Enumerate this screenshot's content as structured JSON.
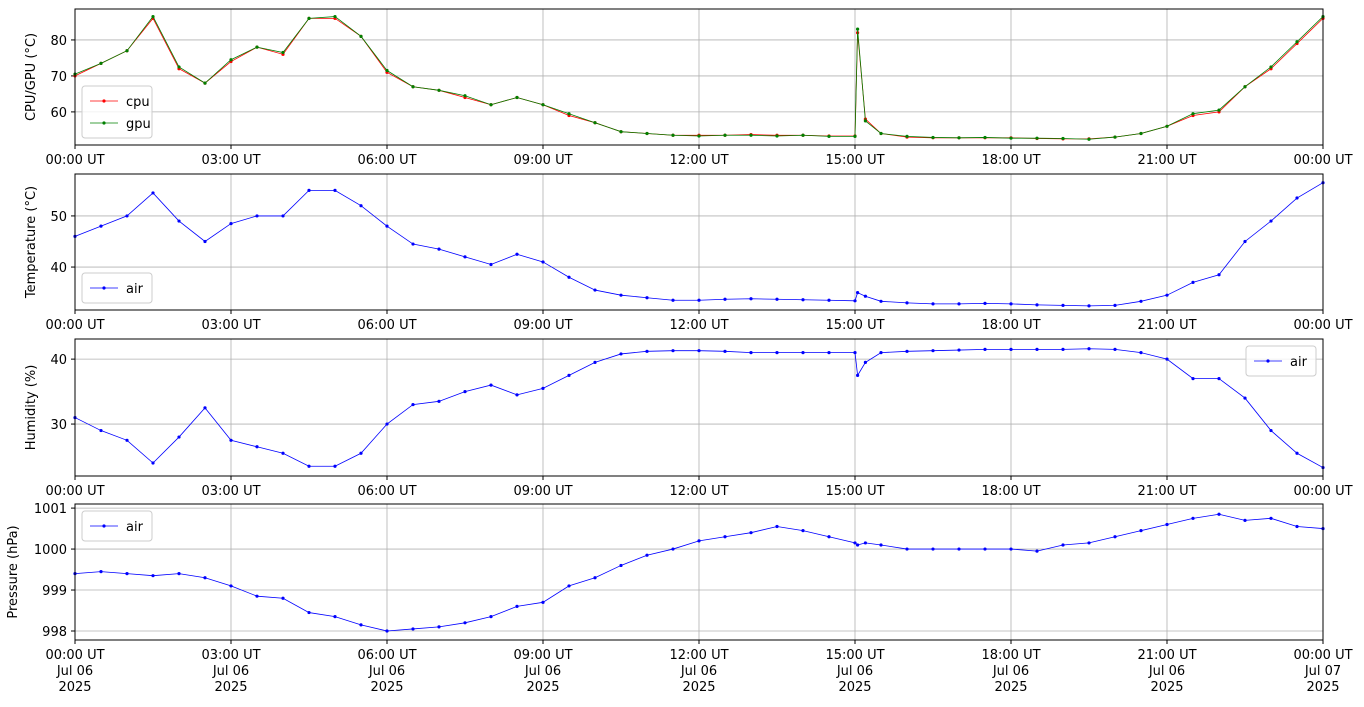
{
  "chart_data": [
    {
      "type": "line",
      "ylabel": "CPU/GPU (°C)",
      "grid": true,
      "legend": "lower left",
      "x": [
        0,
        0.5,
        1,
        1.5,
        2,
        2.5,
        3,
        3.5,
        4,
        4.5,
        5,
        5.5,
        6,
        6.5,
        7,
        7.5,
        8,
        8.5,
        9,
        9.5,
        10,
        10.5,
        11,
        11.5,
        12,
        12.5,
        13,
        13.5,
        14,
        14.5,
        15,
        15.05,
        15.2,
        15.5,
        16,
        16.5,
        17,
        17.5,
        18,
        18.5,
        19,
        19.5,
        20,
        20.5,
        21,
        21.5,
        22,
        22.5,
        23,
        23.5,
        24
      ],
      "xlim": [
        0,
        24
      ],
      "xticks": [
        {
          "value": 0,
          "label": "00:00 UT"
        },
        {
          "value": 3,
          "label": "03:00 UT"
        },
        {
          "value": 6,
          "label": "06:00 UT"
        },
        {
          "value": 9,
          "label": "09:00 UT"
        },
        {
          "value": 12,
          "label": "12:00 UT"
        },
        {
          "value": 15,
          "label": "15:00 UT"
        },
        {
          "value": 18,
          "label": "18:00 UT"
        },
        {
          "value": 21,
          "label": "21:00 UT"
        },
        {
          "value": 24,
          "label": "00:00 UT"
        }
      ],
      "ylim": [
        50.8,
        88.6
      ],
      "yticks": [
        60,
        70,
        80
      ],
      "series": [
        {
          "name": "cpu",
          "color": "#ff0000",
          "values": [
            70,
            73.5,
            77,
            86,
            72,
            68,
            74,
            78,
            76,
            86,
            86,
            81,
            71,
            67,
            66,
            64,
            62,
            64,
            62,
            59,
            57,
            54.5,
            54,
            53.5,
            53.5,
            53.5,
            53.7,
            53.5,
            53.5,
            53.3,
            53.3,
            82,
            58,
            54,
            53,
            52.8,
            52.8,
            52.8,
            52.8,
            52.6,
            52.5,
            52.5,
            53,
            54,
            56,
            59,
            60,
            67,
            72,
            79,
            86
          ]
        },
        {
          "name": "gpu",
          "color": "#008000",
          "values": [
            70.5,
            73.5,
            77,
            86.5,
            72.5,
            68,
            74.5,
            78,
            76.5,
            86,
            86.5,
            81,
            71.5,
            67,
            66,
            64.5,
            62,
            64,
            62,
            59.5,
            57,
            54.5,
            54,
            53.5,
            53.3,
            53.5,
            53.5,
            53.3,
            53.5,
            53.2,
            53.2,
            83,
            57.5,
            54,
            53.2,
            52.9,
            52.8,
            52.9,
            52.7,
            52.7,
            52.6,
            52.4,
            53,
            54,
            56,
            59.5,
            60.5,
            67,
            72.5,
            79.5,
            86.5
          ]
        }
      ]
    },
    {
      "type": "line",
      "ylabel": "Temperature (°C)",
      "grid": true,
      "legend": "lower left",
      "x": [
        0,
        0.5,
        1,
        1.5,
        2,
        2.5,
        3,
        3.5,
        4,
        4.5,
        5,
        5.5,
        6,
        6.5,
        7,
        7.5,
        8,
        8.5,
        9,
        9.5,
        10,
        10.5,
        11,
        11.5,
        12,
        12.5,
        13,
        13.5,
        14,
        14.5,
        15,
        15.05,
        15.2,
        15.5,
        16,
        16.5,
        17,
        17.5,
        18,
        18.5,
        19,
        19.5,
        20,
        20.5,
        21,
        21.5,
        22,
        22.5,
        23,
        23.5,
        24
      ],
      "xlim": [
        0,
        24
      ],
      "xticks": [
        {
          "value": 0,
          "label": "00:00 UT"
        },
        {
          "value": 3,
          "label": "03:00 UT"
        },
        {
          "value": 6,
          "label": "06:00 UT"
        },
        {
          "value": 9,
          "label": "09:00 UT"
        },
        {
          "value": 12,
          "label": "12:00 UT"
        },
        {
          "value": 15,
          "label": "15:00 UT"
        },
        {
          "value": 18,
          "label": "18:00 UT"
        },
        {
          "value": 21,
          "label": "21:00 UT"
        },
        {
          "value": 24,
          "label": "00:00 UT"
        }
      ],
      "ylim": [
        31.6,
        58.2
      ],
      "yticks": [
        40,
        50
      ],
      "series": [
        {
          "name": "air",
          "color": "#0000ff",
          "values": [
            46,
            48,
            50,
            54.5,
            49,
            45,
            48.5,
            50,
            50,
            55,
            55,
            52,
            48,
            44.5,
            43.5,
            42,
            40.5,
            42.5,
            41,
            38,
            35.5,
            34.5,
            34,
            33.5,
            33.5,
            33.7,
            33.8,
            33.7,
            33.6,
            33.5,
            33.4,
            35,
            34.3,
            33.3,
            33,
            32.8,
            32.8,
            32.9,
            32.8,
            32.6,
            32.5,
            32.4,
            32.5,
            33.3,
            34.5,
            37,
            38.5,
            45,
            49,
            53.5,
            56.5
          ]
        }
      ]
    },
    {
      "type": "line",
      "ylabel": "Humidity (%)",
      "grid": true,
      "legend": "upper right",
      "x": [
        0,
        0.5,
        1,
        1.5,
        2,
        2.5,
        3,
        3.5,
        4,
        4.5,
        5,
        5.5,
        6,
        6.5,
        7,
        7.5,
        8,
        8.5,
        9,
        9.5,
        10,
        10.5,
        11,
        11.5,
        12,
        12.5,
        13,
        13.5,
        14,
        14.5,
        15,
        15.05,
        15.2,
        15.5,
        16,
        16.5,
        17,
        17.5,
        18,
        18.5,
        19,
        19.5,
        20,
        20.5,
        21,
        21.5,
        22,
        22.5,
        23,
        23.5,
        24
      ],
      "xlim": [
        0,
        24
      ],
      "xticks": [
        {
          "value": 0,
          "label": "00:00 UT"
        },
        {
          "value": 3,
          "label": "03:00 UT"
        },
        {
          "value": 6,
          "label": "06:00 UT"
        },
        {
          "value": 9,
          "label": "09:00 UT"
        },
        {
          "value": 12,
          "label": "12:00 UT"
        },
        {
          "value": 15,
          "label": "15:00 UT"
        },
        {
          "value": 18,
          "label": "18:00 UT"
        },
        {
          "value": 21,
          "label": "21:00 UT"
        },
        {
          "value": 24,
          "label": "00:00 UT"
        }
      ],
      "ylim": [
        22.0,
        43.1
      ],
      "yticks": [
        30,
        40
      ],
      "series": [
        {
          "name": "air",
          "color": "#0000ff",
          "values": [
            31,
            29,
            27.5,
            24,
            28,
            32.5,
            27.5,
            26.5,
            25.5,
            23.5,
            23.5,
            25.5,
            30,
            33,
            33.5,
            35,
            36,
            34.5,
            35.5,
            37.5,
            39.5,
            40.8,
            41.2,
            41.3,
            41.3,
            41.2,
            41,
            41,
            41,
            41,
            41,
            37.5,
            39.5,
            41,
            41.2,
            41.3,
            41.4,
            41.5,
            41.5,
            41.5,
            41.5,
            41.6,
            41.5,
            41,
            40,
            37,
            37,
            34,
            29,
            25.5,
            23.3
          ]
        }
      ]
    },
    {
      "type": "line",
      "ylabel": "Pressure (hPa)",
      "grid": true,
      "legend": "upper left",
      "x": [
        0,
        0.5,
        1,
        1.5,
        2,
        2.5,
        3,
        3.5,
        4,
        4.5,
        5,
        5.5,
        6,
        6.5,
        7,
        7.5,
        8,
        8.5,
        9,
        9.5,
        10,
        10.5,
        11,
        11.5,
        12,
        12.5,
        13,
        13.5,
        14,
        14.5,
        15,
        15.05,
        15.2,
        15.5,
        16,
        16.5,
        17,
        17.5,
        18,
        18.5,
        19,
        19.5,
        20,
        20.5,
        21,
        21.5,
        22,
        22.5,
        23,
        23.5,
        24
      ],
      "xlim": [
        0,
        24
      ],
      "xticks": [
        {
          "value": 0,
          "label": [
            "00:00 UT",
            "Jul 06",
            "2025"
          ]
        },
        {
          "value": 3,
          "label": [
            "03:00 UT",
            "Jul 06",
            "2025"
          ]
        },
        {
          "value": 6,
          "label": [
            "06:00 UT",
            "Jul 06",
            "2025"
          ]
        },
        {
          "value": 9,
          "label": [
            "09:00 UT",
            "Jul 06",
            "2025"
          ]
        },
        {
          "value": 12,
          "label": [
            "12:00 UT",
            "Jul 06",
            "2025"
          ]
        },
        {
          "value": 15,
          "label": [
            "15:00 UT",
            "Jul 06",
            "2025"
          ]
        },
        {
          "value": 18,
          "label": [
            "18:00 UT",
            "Jul 06",
            "2025"
          ]
        },
        {
          "value": 21,
          "label": [
            "21:00 UT",
            "Jul 06",
            "2025"
          ]
        },
        {
          "value": 24,
          "label": [
            "00:00 UT",
            "Jul 07",
            "2025"
          ]
        }
      ],
      "ylim": [
        997.78,
        1001.1
      ],
      "yticks": [
        998,
        999,
        1000,
        1001
      ],
      "series": [
        {
          "name": "air",
          "color": "#0000ff",
          "values": [
            999.4,
            999.45,
            999.4,
            999.35,
            999.4,
            999.3,
            999.1,
            998.85,
            998.8,
            998.45,
            998.35,
            998.15,
            998.0,
            998.05,
            998.1,
            998.2,
            998.35,
            998.6,
            998.7,
            999.1,
            999.3,
            999.6,
            999.85,
            1000.0,
            1000.2,
            1000.3,
            1000.4,
            1000.55,
            1000.45,
            1000.3,
            1000.15,
            1000.1,
            1000.15,
            1000.1,
            1000.0,
            1000.0,
            1000.0,
            1000.0,
            1000.0,
            999.95,
            1000.1,
            1000.15,
            1000.3,
            1000.45,
            1000.6,
            1000.75,
            1000.85,
            1000.7,
            1000.75,
            1000.55,
            1000.5
          ]
        }
      ]
    }
  ]
}
